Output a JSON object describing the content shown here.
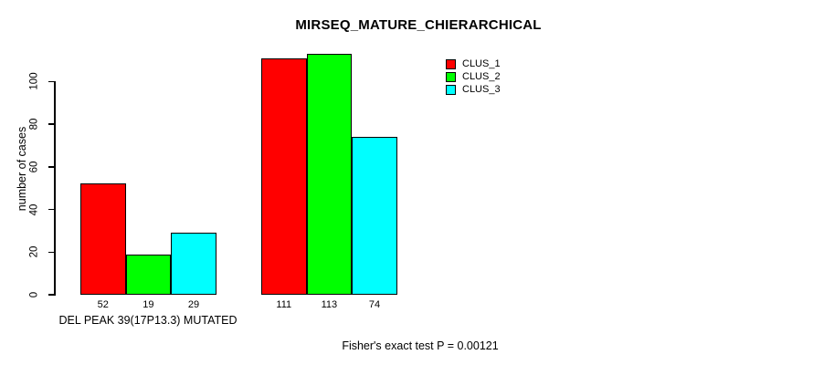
{
  "chart_data": {
    "type": "bar",
    "title": "MIRSEQ_MATURE_CHIERARCHICAL",
    "ylabel": "number of cases",
    "xlabel": "",
    "yticks": [
      0,
      20,
      40,
      60,
      80,
      100
    ],
    "ylim": [
      0,
      113
    ],
    "grid": false,
    "bar_value_labels": true,
    "categories": [
      "DEL PEAK 39(17P13.3) MUTATED",
      ""
    ],
    "series": [
      {
        "name": "CLUS_1",
        "color": "#FF0000",
        "values": [
          52,
          111
        ]
      },
      {
        "name": "CLUS_2",
        "color": "#00FF00",
        "values": [
          19,
          113
        ]
      },
      {
        "name": "CLUS_3",
        "color": "#00FFFF",
        "values": [
          29,
          74
        ]
      }
    ],
    "legend": {
      "position": "top-right",
      "entries": [
        "CLUS_1",
        "CLUS_2",
        "CLUS_3"
      ]
    },
    "footer": "Fisher's exact test P = 0.00121"
  },
  "colors": {
    "background": "#FFFFFF",
    "axis": "#000000",
    "text": "#000000",
    "bar_border": "#000000"
  }
}
